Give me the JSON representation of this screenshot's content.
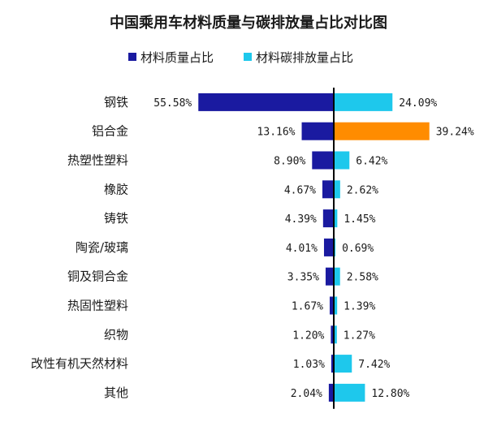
{
  "chart_data": {
    "type": "bar",
    "title": "中国乘用车材料质量与碳排放量占比对比图",
    "categories": [
      "钢铁",
      "铝合金",
      "热塑性塑料",
      "橡胶",
      "铸铁",
      "陶瓷/玻璃",
      "铜及铜合金",
      "热固性塑料",
      "织物",
      "改性有机天然材料",
      "其他"
    ],
    "series": [
      {
        "name": "材料质量占比",
        "color": "#1a1aa0",
        "values": [
          55.58,
          13.16,
          8.9,
          4.67,
          4.39,
          4.01,
          3.35,
          1.67,
          1.2,
          1.03,
          2.04
        ],
        "labels": [
          "55.58%",
          "13.16%",
          "8.90%",
          "4.67%",
          "4.39%",
          "4.01%",
          "3.35%",
          "1.67%",
          "1.20%",
          "1.03%",
          "2.04%"
        ]
      },
      {
        "name": "材料碳排放量占比",
        "color": "#1ec8ec",
        "highlight_color": "#ff8c00",
        "highlight_index": 1,
        "values": [
          24.09,
          39.24,
          6.42,
          2.62,
          1.45,
          0.69,
          2.58,
          1.39,
          1.27,
          7.42,
          12.8
        ],
        "labels": [
          "24.09%",
          "39.24%",
          "6.42%",
          "2.62%",
          "1.45%",
          "0.69%",
          "2.58%",
          "1.39%",
          "1.27%",
          "7.42%",
          "12.80%"
        ]
      }
    ],
    "xlim": [
      -60,
      60
    ],
    "axis_color": "#000000",
    "legend_position": "top-center",
    "grid": false
  }
}
